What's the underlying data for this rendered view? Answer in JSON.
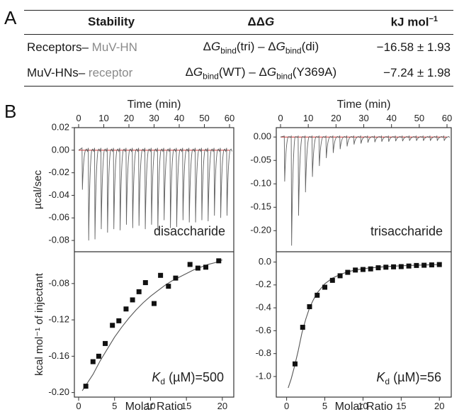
{
  "panel_labels": {
    "a": "A",
    "b": "B"
  },
  "table": {
    "headers": {
      "stability": "Stability",
      "ddg": "ΔΔ",
      "ddg_italic": "G",
      "unit": "kJ mol",
      "unit_sup": "−1"
    },
    "rows": [
      {
        "label_black": "Receptors–",
        "label_gray": "MuV-HN",
        "formula": [
          {
            "t": "Δ"
          },
          {
            "t": "G",
            "i": true
          },
          {
            "t": "bind",
            "sub": true
          },
          {
            "t": "(tri) – Δ"
          },
          {
            "t": "G",
            "i": true
          },
          {
            "t": "bind",
            "sub": true
          },
          {
            "t": "(di)"
          }
        ],
        "value": "−16.58 ± 1.93"
      },
      {
        "label_black": "MuV-HNs–",
        "label_gray": "receptor",
        "formula": [
          {
            "t": "Δ"
          },
          {
            "t": "G",
            "i": true
          },
          {
            "t": "bind",
            "sub": true
          },
          {
            "t": "(WT) – Δ"
          },
          {
            "t": "G",
            "i": true
          },
          {
            "t": "bind",
            "sub": true
          },
          {
            "t": "(Y369A)"
          }
        ],
        "value": "−7.24 ± 1.98"
      }
    ]
  },
  "colors": {
    "raw_trace": "#606060",
    "baseline": "#d03030",
    "fit": "#555555",
    "points": "#111111",
    "frame": "#333333"
  },
  "chart_data": [
    {
      "type": "line",
      "panel": "raw-disaccharide",
      "xlabel_top": "Time (min)",
      "ylabel": "µcal/sec",
      "label": "disaccharide",
      "xlim": [
        0,
        60
      ],
      "ylim": [
        -0.09,
        0.02
      ],
      "xticks": [
        0,
        10,
        20,
        30,
        40,
        50,
        60
      ],
      "yticks": [
        0.02,
        0.0,
        -0.02,
        -0.04,
        -0.06,
        -0.08
      ],
      "injection_times": [
        1.5,
        4,
        6.5,
        9,
        11.5,
        14,
        16.5,
        19,
        21.5,
        24,
        26.5,
        29,
        31.5,
        34,
        36.5,
        39,
        41.5,
        44,
        46.5,
        49,
        51.5,
        54,
        56.5,
        59
      ],
      "injection_minima": [
        -0.035,
        -0.08,
        -0.079,
        -0.07,
        -0.073,
        -0.07,
        -0.071,
        -0.066,
        -0.069,
        -0.067,
        -0.07,
        -0.066,
        -0.071,
        -0.062,
        -0.069,
        -0.068,
        -0.062,
        -0.064,
        -0.064,
        -0.062,
        -0.063,
        -0.058,
        -0.06,
        -0.058
      ]
    },
    {
      "type": "line",
      "panel": "raw-trisaccharide",
      "xlabel_top": "Time (min)",
      "label": "trisaccharide",
      "xlim": [
        0,
        60
      ],
      "ylim": [
        -0.245,
        0.02
      ],
      "xticks": [
        0,
        10,
        20,
        30,
        40,
        50,
        60
      ],
      "yticks": [
        0.0,
        -0.05,
        -0.1,
        -0.15,
        -0.2
      ],
      "injection_times": [
        1.5,
        4,
        6.5,
        9,
        11.5,
        14,
        16.5,
        19,
        21.5,
        24,
        26.5,
        29,
        31.5,
        34,
        36.5,
        39,
        41.5,
        44,
        46.5,
        49,
        51.5,
        54,
        56.5,
        59
      ],
      "injection_minima": [
        -0.095,
        -0.232,
        -0.168,
        -0.118,
        -0.085,
        -0.062,
        -0.045,
        -0.034,
        -0.026,
        -0.02,
        -0.016,
        -0.014,
        -0.012,
        -0.011,
        -0.01,
        -0.01,
        -0.009,
        -0.009,
        -0.008,
        -0.008,
        -0.008,
        -0.008,
        -0.008,
        -0.008
      ]
    },
    {
      "type": "scatter",
      "panel": "isotherm-disaccharide",
      "xlabel": "Molar Ratio",
      "ylabel": "kcal mol⁻¹ of injectant",
      "annotation": {
        "k": "K",
        "sub": "d",
        "rest": " (µM)=500"
      },
      "xlim": [
        0,
        21
      ],
      "ylim": [
        -0.205,
        -0.045
      ],
      "xticks": [
        0,
        5,
        10,
        15,
        20
      ],
      "yticks": [
        -0.08,
        -0.12,
        -0.16,
        -0.2
      ],
      "points": [
        [
          1.0,
          -0.193
        ],
        [
          2.0,
          -0.166
        ],
        [
          2.8,
          -0.16
        ],
        [
          3.7,
          -0.146
        ],
        [
          4.7,
          -0.126
        ],
        [
          5.6,
          -0.121
        ],
        [
          6.6,
          -0.108
        ],
        [
          7.5,
          -0.098
        ],
        [
          8.4,
          -0.089
        ],
        [
          9.3,
          -0.079
        ],
        [
          10.5,
          -0.102
        ],
        [
          11.4,
          -0.071
        ],
        [
          12.5,
          -0.083
        ],
        [
          13.5,
          -0.074
        ],
        [
          15.5,
          -0.059
        ],
        [
          16.6,
          -0.063
        ],
        [
          17.7,
          -0.062
        ],
        [
          19.5,
          -0.055
        ]
      ],
      "fit": [
        [
          0.5,
          -0.198
        ],
        [
          1,
          -0.192
        ],
        [
          2,
          -0.18
        ],
        [
          3,
          -0.165
        ],
        [
          4,
          -0.152
        ],
        [
          5,
          -0.139
        ],
        [
          6,
          -0.128
        ],
        [
          7,
          -0.118
        ],
        [
          8,
          -0.109
        ],
        [
          9,
          -0.101
        ],
        [
          10,
          -0.094
        ],
        [
          11,
          -0.088
        ],
        [
          12,
          -0.082
        ],
        [
          13,
          -0.077
        ],
        [
          14,
          -0.073
        ],
        [
          15,
          -0.069
        ],
        [
          16,
          -0.065
        ],
        [
          17,
          -0.062
        ],
        [
          18,
          -0.059
        ],
        [
          19,
          -0.057
        ],
        [
          20,
          -0.054
        ]
      ]
    },
    {
      "type": "scatter",
      "panel": "isotherm-trisaccharide",
      "xlabel": "Molar Ratio",
      "annotation": {
        "k": "K",
        "sub": "d",
        "rest": " (µM)=56"
      },
      "xlim": [
        -0.8,
        21
      ],
      "ylim": [
        -1.18,
        0.09
      ],
      "xticks": [
        0,
        5,
        10,
        15,
        20
      ],
      "yticks": [
        0.0,
        -0.2,
        -0.4,
        -0.6,
        -0.8,
        -1.0
      ],
      "points": [
        [
          1.1,
          -0.89
        ],
        [
          2.1,
          -0.57
        ],
        [
          3.0,
          -0.39
        ],
        [
          4.0,
          -0.29
        ],
        [
          5.0,
          -0.22
        ],
        [
          6.0,
          -0.16
        ],
        [
          7.0,
          -0.12
        ],
        [
          8.0,
          -0.09
        ],
        [
          9.0,
          -0.07
        ],
        [
          10.0,
          -0.065
        ],
        [
          11.0,
          -0.06
        ],
        [
          12.0,
          -0.05
        ],
        [
          13.0,
          -0.045
        ],
        [
          14.0,
          -0.042
        ],
        [
          15.0,
          -0.04
        ],
        [
          16.0,
          -0.035
        ],
        [
          17.0,
          -0.03
        ],
        [
          18.0,
          -0.028
        ],
        [
          19.0,
          -0.025
        ],
        [
          20.0,
          -0.022
        ]
      ],
      "fit": [
        [
          0.2,
          -1.1
        ],
        [
          0.6,
          -1.02
        ],
        [
          1,
          -0.92
        ],
        [
          1.5,
          -0.78
        ],
        [
          2,
          -0.62
        ],
        [
          2.5,
          -0.5
        ],
        [
          3,
          -0.4
        ],
        [
          3.5,
          -0.33
        ],
        [
          4,
          -0.27
        ],
        [
          5,
          -0.19
        ],
        [
          6,
          -0.14
        ],
        [
          7,
          -0.11
        ],
        [
          8,
          -0.085
        ],
        [
          9,
          -0.07
        ],
        [
          10,
          -0.058
        ],
        [
          12,
          -0.045
        ],
        [
          14,
          -0.036
        ],
        [
          16,
          -0.03
        ],
        [
          18,
          -0.026
        ],
        [
          20,
          -0.022
        ]
      ]
    }
  ]
}
